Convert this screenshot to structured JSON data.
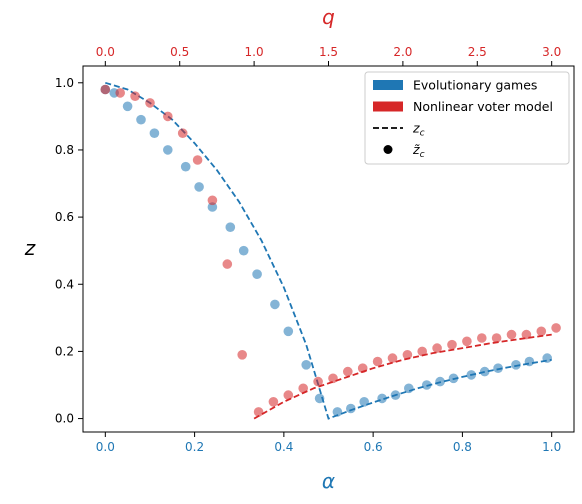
{
  "chart_data": {
    "type": "scatter",
    "bottom_axis": {
      "label": "α",
      "range": [
        -0.05,
        1.05
      ],
      "ticks": [
        "0.0",
        "0.2",
        "0.4",
        "0.6",
        "0.8",
        "1.0"
      ],
      "color": "#1f77b4"
    },
    "top_axis": {
      "label": "q",
      "range": [
        -0.15,
        3.15
      ],
      "ticks": [
        "0.0",
        "0.5",
        "1.0",
        "1.5",
        "2.0",
        "2.5",
        "3.0"
      ],
      "color": "#d62728"
    },
    "left_axis": {
      "label": "z",
      "range": [
        -0.04,
        1.05
      ],
      "ticks": [
        "0.0",
        "0.2",
        "0.4",
        "0.6",
        "0.8",
        "1.0"
      ]
    },
    "legend": {
      "placement": "top-right",
      "entries": [
        {
          "label": "Evolutionary games",
          "marker": "patch",
          "color": "#1f77b4"
        },
        {
          "label": "Nonlinear voter model",
          "marker": "patch",
          "color": "#d62728"
        },
        {
          "label": "z_c",
          "marker": "dashed-line",
          "color": "#000000"
        },
        {
          "label": "z̃_c",
          "marker": "dot",
          "color": "#000000"
        }
      ]
    },
    "series": [
      {
        "name": "Evolutionary games",
        "color": "#1f77b4",
        "axis": "α",
        "points": [
          [
            0.0,
            0.98
          ],
          [
            0.02,
            0.97
          ],
          [
            0.05,
            0.93
          ],
          [
            0.08,
            0.89
          ],
          [
            0.11,
            0.85
          ],
          [
            0.14,
            0.8
          ],
          [
            0.18,
            0.75
          ],
          [
            0.21,
            0.69
          ],
          [
            0.24,
            0.63
          ],
          [
            0.28,
            0.57
          ],
          [
            0.31,
            0.5
          ],
          [
            0.34,
            0.43
          ],
          [
            0.38,
            0.34
          ],
          [
            0.41,
            0.26
          ],
          [
            0.45,
            0.16
          ],
          [
            0.48,
            0.06
          ],
          [
            0.52,
            0.02
          ],
          [
            0.55,
            0.03
          ],
          [
            0.58,
            0.05
          ],
          [
            0.62,
            0.06
          ],
          [
            0.65,
            0.07
          ],
          [
            0.68,
            0.09
          ],
          [
            0.72,
            0.1
          ],
          [
            0.75,
            0.11
          ],
          [
            0.78,
            0.12
          ],
          [
            0.82,
            0.13
          ],
          [
            0.85,
            0.14
          ],
          [
            0.88,
            0.15
          ],
          [
            0.92,
            0.16
          ],
          [
            0.95,
            0.17
          ],
          [
            0.99,
            0.18
          ]
        ]
      },
      {
        "name": "Nonlinear voter model",
        "color": "#d62728",
        "axis": "q",
        "points": [
          [
            0.0,
            0.98
          ],
          [
            0.1,
            0.97
          ],
          [
            0.2,
            0.96
          ],
          [
            0.3,
            0.94
          ],
          [
            0.42,
            0.9
          ],
          [
            0.52,
            0.85
          ],
          [
            0.62,
            0.77
          ],
          [
            0.72,
            0.65
          ],
          [
            0.82,
            0.46
          ],
          [
            0.92,
            0.19
          ],
          [
            1.03,
            0.02
          ],
          [
            1.13,
            0.05
          ],
          [
            1.23,
            0.07
          ],
          [
            1.33,
            0.09
          ],
          [
            1.43,
            0.11
          ],
          [
            1.53,
            0.12
          ],
          [
            1.63,
            0.14
          ],
          [
            1.73,
            0.15
          ],
          [
            1.83,
            0.17
          ],
          [
            1.93,
            0.18
          ],
          [
            2.03,
            0.19
          ],
          [
            2.13,
            0.2
          ],
          [
            2.23,
            0.21
          ],
          [
            2.33,
            0.22
          ],
          [
            2.43,
            0.23
          ],
          [
            2.53,
            0.24
          ],
          [
            2.63,
            0.24
          ],
          [
            2.73,
            0.25
          ],
          [
            2.83,
            0.25
          ],
          [
            2.93,
            0.26
          ],
          [
            3.03,
            0.27
          ]
        ]
      }
    ],
    "curves": [
      {
        "series": "Evolutionary games",
        "axis": "α",
        "style": "dashed",
        "color": "#1f77b4",
        "points": [
          [
            0.0,
            1.0
          ],
          [
            0.05,
            0.98
          ],
          [
            0.1,
            0.94
          ],
          [
            0.15,
            0.89
          ],
          [
            0.2,
            0.82
          ],
          [
            0.25,
            0.74
          ],
          [
            0.3,
            0.645
          ],
          [
            0.35,
            0.53
          ],
          [
            0.4,
            0.39
          ],
          [
            0.45,
            0.22
          ],
          [
            0.5,
            0.0
          ],
          [
            0.55,
            0.025
          ],
          [
            0.6,
            0.048
          ],
          [
            0.65,
            0.07
          ],
          [
            0.7,
            0.09
          ],
          [
            0.75,
            0.108
          ],
          [
            0.8,
            0.124
          ],
          [
            0.85,
            0.139
          ],
          [
            0.9,
            0.152
          ],
          [
            0.95,
            0.164
          ],
          [
            1.0,
            0.175
          ]
        ]
      },
      {
        "series": "Nonlinear voter model",
        "axis": "q",
        "style": "dashed",
        "color": "#d62728",
        "points": [
          [
            1.0,
            0.0
          ],
          [
            1.2,
            0.05
          ],
          [
            1.4,
            0.09
          ],
          [
            1.6,
            0.12
          ],
          [
            1.8,
            0.15
          ],
          [
            2.0,
            0.175
          ],
          [
            2.2,
            0.195
          ],
          [
            2.4,
            0.21
          ],
          [
            2.6,
            0.225
          ],
          [
            2.8,
            0.238
          ],
          [
            3.0,
            0.25
          ]
        ]
      }
    ]
  }
}
